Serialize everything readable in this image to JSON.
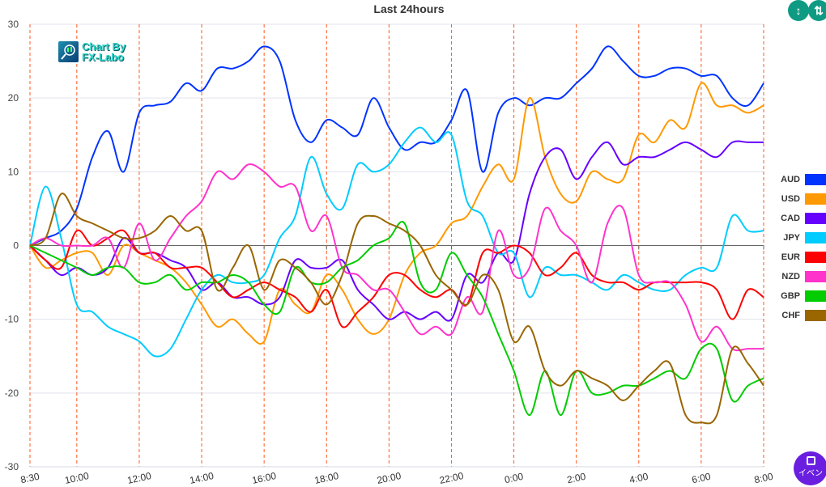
{
  "chart_data": {
    "type": "line",
    "title": "Last 24hours",
    "xlabel": "",
    "ylabel": "",
    "ylim": [
      -30,
      30
    ],
    "yticks": [
      30,
      20,
      10,
      0,
      -10,
      -20,
      -30
    ],
    "x_tick_labels": [
      "8:30",
      "10:00",
      "12:00",
      "14:00",
      "16:00",
      "18:00",
      "20:00",
      "22:00",
      "0:00",
      "2:00",
      "4:00",
      "6:00",
      "8:00"
    ],
    "x_tick_hours": [
      0,
      1.5,
      3.5,
      5.5,
      7.5,
      9.5,
      11.5,
      13.5,
      15.5,
      17.5,
      19.5,
      21.5,
      23.5
    ],
    "x_step_hours": 0.5,
    "legend_position": "right",
    "grid": true,
    "series": [
      {
        "name": "AUD",
        "color": "#0033ff",
        "values": [
          0,
          1,
          2,
          5,
          12,
          15.5,
          10,
          18,
          19,
          19.5,
          22,
          21,
          24,
          24,
          25,
          27,
          25,
          17,
          14,
          17,
          16,
          15,
          20,
          16,
          13,
          14,
          14,
          17,
          21,
          10,
          18,
          20,
          19,
          20,
          20,
          22,
          24,
          27,
          25,
          23,
          23,
          24,
          24,
          23,
          23,
          20,
          19,
          22
        ]
      },
      {
        "name": "USD",
        "color": "#ff9900",
        "values": [
          0,
          -3,
          -2,
          -1,
          -1,
          -4,
          0,
          -1,
          -2,
          -3,
          -5,
          -8,
          -11,
          -10,
          -12,
          -13,
          -6,
          -8,
          -9,
          -4,
          -6,
          -10,
          -12,
          -10,
          -4,
          -1,
          0,
          3,
          4,
          8,
          11,
          9,
          20,
          12,
          7,
          6,
          10,
          9,
          9,
          15,
          14,
          17,
          16,
          22,
          19,
          19,
          18,
          19
        ]
      },
      {
        "name": "CAD",
        "color": "#6600ff",
        "values": [
          0,
          -2,
          -4,
          -3,
          -4,
          -3,
          1,
          -1,
          -1,
          -2,
          -3,
          -6,
          -5,
          -7,
          -7,
          -8,
          -7,
          -2,
          -3,
          -3,
          -2,
          -6,
          -8,
          -10,
          -9,
          -10,
          -9,
          -10,
          -4,
          -5,
          -1,
          -2,
          7,
          12,
          13,
          9,
          12,
          14,
          11,
          12,
          12,
          13,
          14,
          13,
          12,
          14,
          14,
          14
        ]
      },
      {
        "name": "JPY",
        "color": "#00ccff",
        "values": [
          0,
          8,
          1,
          -8,
          -9,
          -11,
          -12,
          -13,
          -15,
          -14,
          -10,
          -6,
          -4,
          -5,
          -5,
          -4,
          1,
          4,
          12,
          7,
          5,
          11,
          10,
          11,
          14,
          16,
          14,
          15,
          6,
          4,
          -1,
          -1,
          -7,
          -3,
          -4,
          -4,
          -5,
          -6,
          -4,
          -5,
          -6,
          -6,
          -4,
          -3,
          -3,
          4,
          2,
          2
        ]
      },
      {
        "name": "EUR",
        "color": "#ff0000",
        "values": [
          0,
          -2,
          -3,
          2,
          0,
          1,
          2,
          -1,
          -1,
          -3,
          -3,
          -3,
          -5,
          -7,
          -6,
          -5,
          -6,
          -7,
          -9,
          -6,
          -11,
          -9,
          -7,
          -4,
          -4,
          -6,
          -7,
          -6,
          -8,
          -1,
          -1,
          0,
          -1,
          -4,
          -3,
          -1,
          -4,
          -5,
          -5,
          -6,
          -5,
          -5,
          -5,
          -5,
          -6,
          -10,
          -6,
          -7
        ]
      },
      {
        "name": "NZD",
        "color": "#ff33cc",
        "values": [
          0,
          1,
          0,
          0,
          0,
          1,
          -3,
          3,
          -2,
          1,
          4,
          6,
          10,
          9,
          11,
          10,
          8,
          8,
          2,
          4,
          -3,
          -4,
          -6,
          -6,
          -9,
          -12,
          -11,
          -12,
          -7,
          -9,
          2,
          -4,
          -3,
          5,
          2,
          0,
          -5,
          3,
          5,
          -4,
          -5,
          -5,
          -8,
          -13,
          -11,
          -14,
          -14,
          -14
        ]
      },
      {
        "name": "GBP",
        "color": "#00cc00",
        "values": [
          0,
          -1,
          -2,
          -3,
          -4,
          -3,
          -3,
          -5,
          -5,
          -4,
          -6,
          -5,
          -5,
          -4,
          -5,
          -8,
          -9,
          -3,
          -5,
          -5,
          -3,
          -2,
          0,
          1,
          3,
          -5,
          -6,
          -1,
          -4,
          -7,
          -12,
          -17,
          -23,
          -17,
          -23,
          -17,
          -20,
          -20,
          -19,
          -19,
          -18,
          -17,
          -18,
          -14,
          -14,
          -21,
          -19,
          -18
        ]
      },
      {
        "name": "CHF",
        "color": "#996600",
        "values": [
          0,
          1,
          7,
          4,
          3,
          2,
          1,
          1,
          2,
          4,
          2,
          2,
          -6,
          -3,
          0,
          -6,
          -2,
          -3,
          -5,
          -8,
          -4,
          3,
          4,
          3,
          2,
          0,
          -4,
          -6,
          -8,
          -4,
          -6,
          -13,
          -11,
          -17,
          -19,
          -17,
          -18,
          -19,
          -21,
          -19,
          -17,
          -16,
          -23,
          -24,
          -23,
          -14,
          -16,
          -19
        ]
      }
    ]
  },
  "watermark": {
    "line1": "Chart By",
    "line2": "FX-Labo"
  },
  "toolbar": {
    "collapse_icon": "compress-vertical-icon",
    "expand_icon": "expand-vertical-icon"
  },
  "event_button": {
    "label": "イベン",
    "icon": "calendar-icon"
  }
}
